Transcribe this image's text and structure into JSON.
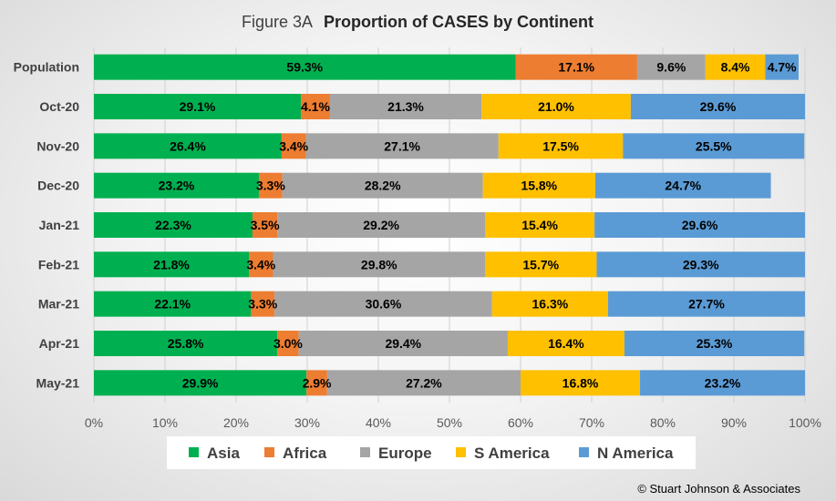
{
  "chart_data": {
    "type": "bar",
    "orientation": "horizontal",
    "stacked": "percent",
    "title_prefix": "Figure  3A",
    "title_main": "Proportion of CASES by Continent",
    "categories": [
      "Population",
      "Oct-20",
      "Nov-20",
      "Dec-20",
      "Jan-21",
      "Feb-21",
      "Mar-21",
      "Apr-21",
      "May-21"
    ],
    "series": [
      {
        "name": "Asia",
        "color": "#00b050",
        "values": [
          59.3,
          29.1,
          26.4,
          23.2,
          22.3,
          21.8,
          22.1,
          25.8,
          29.9
        ],
        "labels": [
          "59.3%",
          "29.1%",
          "26.4%",
          "23.2%",
          "22.3%",
          "21.8%",
          "22.1%",
          "25.8%",
          "29.9%"
        ]
      },
      {
        "name": "Africa",
        "color": "#ed7d31",
        "values": [
          17.1,
          4.1,
          3.4,
          3.3,
          3.5,
          3.4,
          3.3,
          3.0,
          2.9
        ],
        "labels": [
          "17.1%",
          "4.1%",
          "3.4%",
          "3.3%",
          "3.5%",
          "3.4%",
          "3.3%",
          "3.0%",
          "2.9%"
        ]
      },
      {
        "name": "Europe",
        "color": "#a5a5a5",
        "values": [
          9.6,
          21.3,
          27.1,
          28.2,
          29.2,
          29.8,
          30.6,
          29.4,
          27.2
        ],
        "labels": [
          "9.6%",
          "21.3%",
          "27.1%",
          "28.2%",
          "29.2%",
          "29.8%",
          "30.6%",
          "29.4%",
          "27.2%"
        ]
      },
      {
        "name": "S America",
        "color": "#ffc000",
        "values": [
          8.4,
          21.0,
          17.5,
          15.8,
          15.4,
          15.7,
          16.3,
          16.4,
          16.8
        ],
        "labels": [
          "8.4%",
          "21.0%",
          "17.5%",
          "15.8%",
          "15.4%",
          "15.7%",
          "16.3%",
          "16.4%",
          "16.8%"
        ]
      },
      {
        "name": "N America",
        "color": "#5b9bd5",
        "values": [
          4.7,
          29.6,
          25.5,
          24.7,
          29.6,
          29.3,
          27.7,
          25.3,
          23.2
        ],
        "labels": [
          "4.7%",
          "29.6%",
          "25.5%",
          "24.7%",
          "29.6%",
          "29.3%",
          "27.7%",
          "25.3%",
          "23.2%"
        ]
      }
    ],
    "xlim": [
      0,
      100
    ],
    "xticks": [
      "0%",
      "10%",
      "20%",
      "30%",
      "40%",
      "50%",
      "60%",
      "70%",
      "80%",
      "90%",
      "100%"
    ],
    "legend_position": "bottom",
    "grid": true
  },
  "footer": {
    "copyright": "© Stuart Johnson & Associates"
  }
}
